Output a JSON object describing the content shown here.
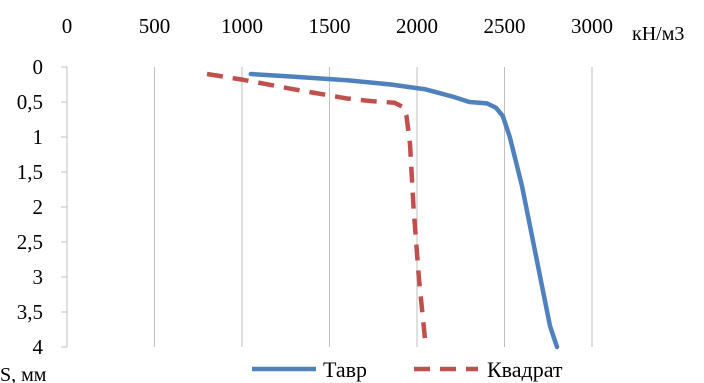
{
  "chart_data": {
    "type": "line",
    "x_axis": {
      "position": "top",
      "range": [
        0,
        3000
      ],
      "ticks": [
        0,
        500,
        1000,
        1500,
        2000,
        2500,
        3000
      ],
      "tick_labels": [
        "0",
        "500",
        "1000",
        "1500",
        "2000",
        "2500",
        "3000"
      ],
      "label": "кН/м3"
    },
    "y_axis": {
      "reversed": true,
      "range": [
        0,
        4
      ],
      "ticks": [
        0,
        0.5,
        1,
        1.5,
        2,
        2.5,
        3,
        3.5,
        4
      ],
      "tick_labels": [
        "0",
        "0,5",
        "1",
        "1,5",
        "2",
        "2,5",
        "3",
        "3,5",
        "4"
      ],
      "label": "S, мм"
    },
    "grid": "vertical",
    "legend_position": "bottom",
    "series": [
      {
        "name": "Тавр",
        "color": "#4f81bd",
        "style": "solid",
        "points": [
          [
            1050,
            0.1
          ],
          [
            1300,
            0.14
          ],
          [
            1600,
            0.19
          ],
          [
            1850,
            0.25
          ],
          [
            2050,
            0.32
          ],
          [
            2200,
            0.42
          ],
          [
            2300,
            0.5
          ],
          [
            2400,
            0.52
          ],
          [
            2450,
            0.58
          ],
          [
            2490,
            0.7
          ],
          [
            2530,
            1.0
          ],
          [
            2600,
            1.7
          ],
          [
            2680,
            2.7
          ],
          [
            2760,
            3.7
          ],
          [
            2800,
            4.0
          ]
        ]
      },
      {
        "name": "Квадрат",
        "color": "#c0504d",
        "style": "dashed",
        "points": [
          [
            800,
            0.1
          ],
          [
            1000,
            0.18
          ],
          [
            1300,
            0.32
          ],
          [
            1600,
            0.45
          ],
          [
            1750,
            0.49
          ],
          [
            1870,
            0.51
          ],
          [
            1920,
            0.57
          ],
          [
            1940,
            0.7
          ],
          [
            1960,
            1.1
          ],
          [
            1980,
            2.0
          ],
          [
            2010,
            3.0
          ],
          [
            2050,
            4.0
          ]
        ]
      }
    ]
  }
}
